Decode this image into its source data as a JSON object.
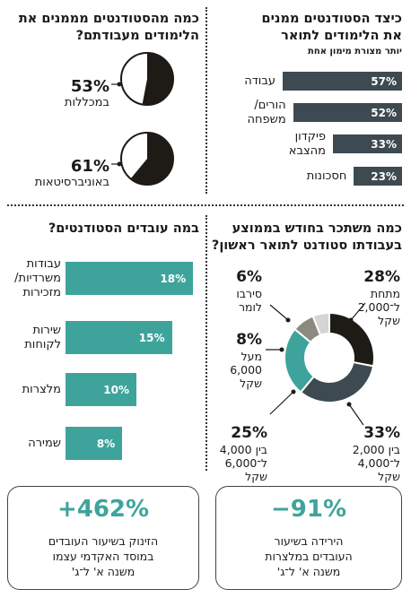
{
  "panels": {
    "financing": {
      "title": [
        "כיצד הסטודנטים ממנים",
        "את הלימודים לתואר"
      ],
      "subtitle": "יותר מצורת מימון אחת"
    },
    "satisfaction": {
      "title": [
        "כמה מהסטודנטים מממנים את",
        "הלימודים מעבודתם?"
      ]
    },
    "jobs": {
      "title": [
        "במה עובדים הסטודנטים?"
      ]
    },
    "salary": {
      "title": [
        "כמה משתכר בחודש בממוצע",
        "בעבודתו סטודנט לתואר ראשון?"
      ]
    }
  },
  "chart_data": [
    {
      "type": "bar",
      "title": "כיצד הסטודנטים ממנים את הלימודים לתואר",
      "subtitle": "יותר מצורת מימון אחת",
      "categories": [
        [
          "עבודה"
        ],
        [
          "הורים/",
          "משפחה"
        ],
        [
          "פיקדון",
          "מהצבא"
        ],
        [
          "חסכונות"
        ]
      ],
      "values": [
        57,
        52,
        33,
        23
      ],
      "value_labels": [
        "57%",
        "52%",
        "33%",
        "23%"
      ],
      "max": 60,
      "color": "#3e4a52"
    },
    {
      "type": "pie",
      "title": "כמה מהסטודנטים מממנים את הלימודים מעבודתם?",
      "items": [
        {
          "label": "במכללות",
          "value": 53,
          "value_label": "53%"
        },
        {
          "label": "באוניברסיטאות",
          "value": 61,
          "value_label": "61%"
        }
      ],
      "fill_color": "#1e1a15"
    },
    {
      "type": "bar",
      "title": "במה עובדים הסטודנטים?",
      "categories": [
        [
          "עבודות",
          "משרדיות/",
          "מזכירות"
        ],
        [
          "שירות",
          "לקוחות"
        ],
        [
          "מלצרות"
        ],
        [
          "שמירה"
        ]
      ],
      "values": [
        18,
        15,
        10,
        8
      ],
      "value_labels": [
        "18%",
        "15%",
        "10%",
        "8%"
      ],
      "max": 20,
      "color": "#3ea49b"
    },
    {
      "type": "pie",
      "subtype": "donut",
      "title": "כמה משתכר בחודש בממוצע בעבודתו סטודנט לתואר ראשון?",
      "slices": [
        {
          "value": 28,
          "pct": "28%",
          "label": [
            "מתחת",
            "ל־2,000 שקל"
          ],
          "color": "#1e1a15"
        },
        {
          "value": 33,
          "pct": "33%",
          "label": [
            "בין 2,000",
            "ל־4,000 שקל"
          ],
          "color": "#3e4a52"
        },
        {
          "value": 25,
          "pct": "25%",
          "label": [
            "בין 4,000",
            "ל־6,000 שקל"
          ],
          "color": "#3ea49b"
        },
        {
          "value": 8,
          "pct": "8%",
          "label": [
            "מעל",
            "6,000",
            "שקל"
          ],
          "color": "#8a8a80"
        },
        {
          "value": 6,
          "pct": "6%",
          "label": [
            "סירבו",
            "לומר"
          ],
          "color": "#d5d5d5"
        }
      ]
    }
  ],
  "callouts": [
    {
      "value": "+462%",
      "text": [
        "הזינוק בשיעור העובדים",
        "במוסד האקדמי עצמו",
        "משנה א' ל־ג'"
      ]
    },
    {
      "value": "−91%",
      "text": [
        "הירידה בשיעור",
        "העובדים במלצרות",
        "משנה א' ל־ג'"
      ]
    }
  ]
}
